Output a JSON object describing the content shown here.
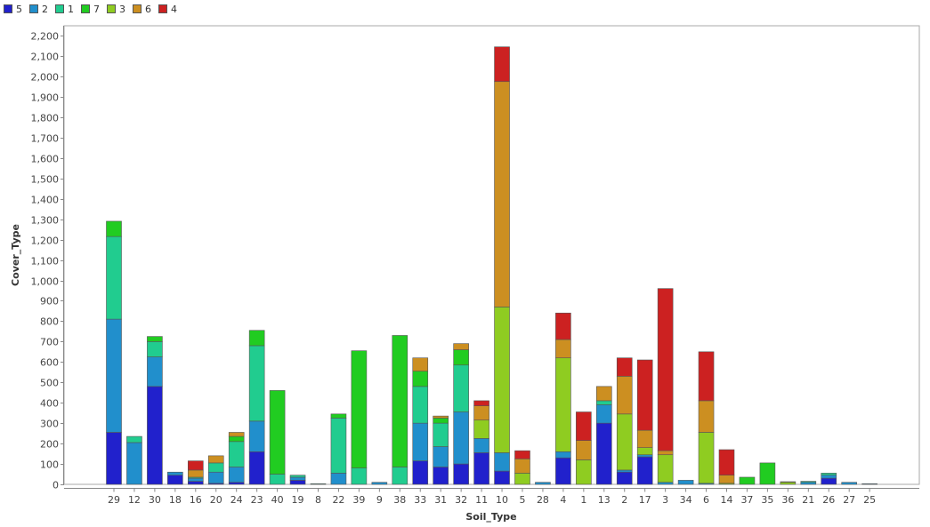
{
  "chart_data": {
    "type": "bar",
    "stacked": true,
    "xlabel": "Soil_Type",
    "ylabel": "Cover_Type",
    "ylim": [
      0,
      2200
    ],
    "ytick_step": 100,
    "grid": true,
    "legend_position": "top-left",
    "categories": [
      "29",
      "12",
      "30",
      "18",
      "16",
      "20",
      "24",
      "23",
      "40",
      "19",
      "8",
      "22",
      "39",
      "9",
      "38",
      "33",
      "31",
      "32",
      "11",
      "10",
      "5",
      "28",
      "4",
      "1",
      "13",
      "2",
      "17",
      "3",
      "34",
      "6",
      "14",
      "37",
      "35",
      "36",
      "21",
      "26",
      "27",
      "25"
    ],
    "series": [
      {
        "name": "5",
        "color": "#2121cc",
        "values": [
          255,
          0,
          480,
          45,
          15,
          5,
          10,
          160,
          0,
          20,
          0,
          0,
          0,
          0,
          0,
          115,
          85,
          100,
          155,
          65,
          0,
          0,
          130,
          0,
          300,
          60,
          135,
          0,
          0,
          0,
          0,
          0,
          0,
          0,
          0,
          30,
          0,
          0
        ]
      },
      {
        "name": "2",
        "color": "#218fcc",
        "values": [
          555,
          205,
          145,
          15,
          15,
          55,
          75,
          150,
          0,
          15,
          0,
          55,
          0,
          10,
          0,
          185,
          100,
          255,
          70,
          90,
          0,
          10,
          30,
          0,
          90,
          10,
          10,
          10,
          20,
          5,
          0,
          0,
          0,
          0,
          10,
          15,
          10,
          3
        ]
      },
      {
        "name": "1",
        "color": "#21cc8f",
        "values": [
          405,
          30,
          75,
          0,
          5,
          45,
          125,
          370,
          50,
          10,
          3,
          270,
          80,
          0,
          85,
          180,
          115,
          230,
          0,
          0,
          0,
          0,
          0,
          0,
          20,
          0,
          0,
          0,
          0,
          0,
          0,
          0,
          0,
          0,
          5,
          10,
          0,
          0
        ]
      },
      {
        "name": "7",
        "color": "#21cc21",
        "values": [
          75,
          0,
          25,
          0,
          0,
          0,
          25,
          75,
          410,
          0,
          0,
          20,
          575,
          0,
          645,
          75,
          25,
          75,
          0,
          0,
          0,
          0,
          0,
          0,
          0,
          0,
          0,
          0,
          0,
          0,
          0,
          35,
          105,
          0,
          0,
          0,
          0,
          0
        ]
      },
      {
        "name": "3",
        "color": "#8fcc21",
        "values": [
          0,
          0,
          0,
          0,
          0,
          0,
          0,
          0,
          0,
          0,
          0,
          0,
          0,
          0,
          0,
          0,
          0,
          0,
          90,
          715,
          55,
          0,
          460,
          120,
          0,
          275,
          35,
          135,
          0,
          250,
          5,
          0,
          0,
          10,
          0,
          0,
          0,
          0
        ]
      },
      {
        "name": "6",
        "color": "#cc8f21",
        "values": [
          0,
          0,
          0,
          0,
          35,
          35,
          20,
          0,
          0,
          0,
          0,
          0,
          0,
          0,
          0,
          65,
          10,
          30,
          70,
          1105,
          70,
          0,
          90,
          95,
          70,
          185,
          85,
          20,
          0,
          155,
          40,
          0,
          0,
          3,
          0,
          0,
          0,
          0
        ]
      },
      {
        "name": "4",
        "color": "#cc2121",
        "values": [
          0,
          0,
          0,
          0,
          45,
          0,
          0,
          0,
          0,
          0,
          0,
          0,
          0,
          0,
          0,
          0,
          0,
          0,
          25,
          170,
          40,
          0,
          130,
          140,
          0,
          90,
          345,
          795,
          0,
          240,
          125,
          0,
          0,
          0,
          0,
          0,
          0,
          0
        ]
      }
    ]
  }
}
